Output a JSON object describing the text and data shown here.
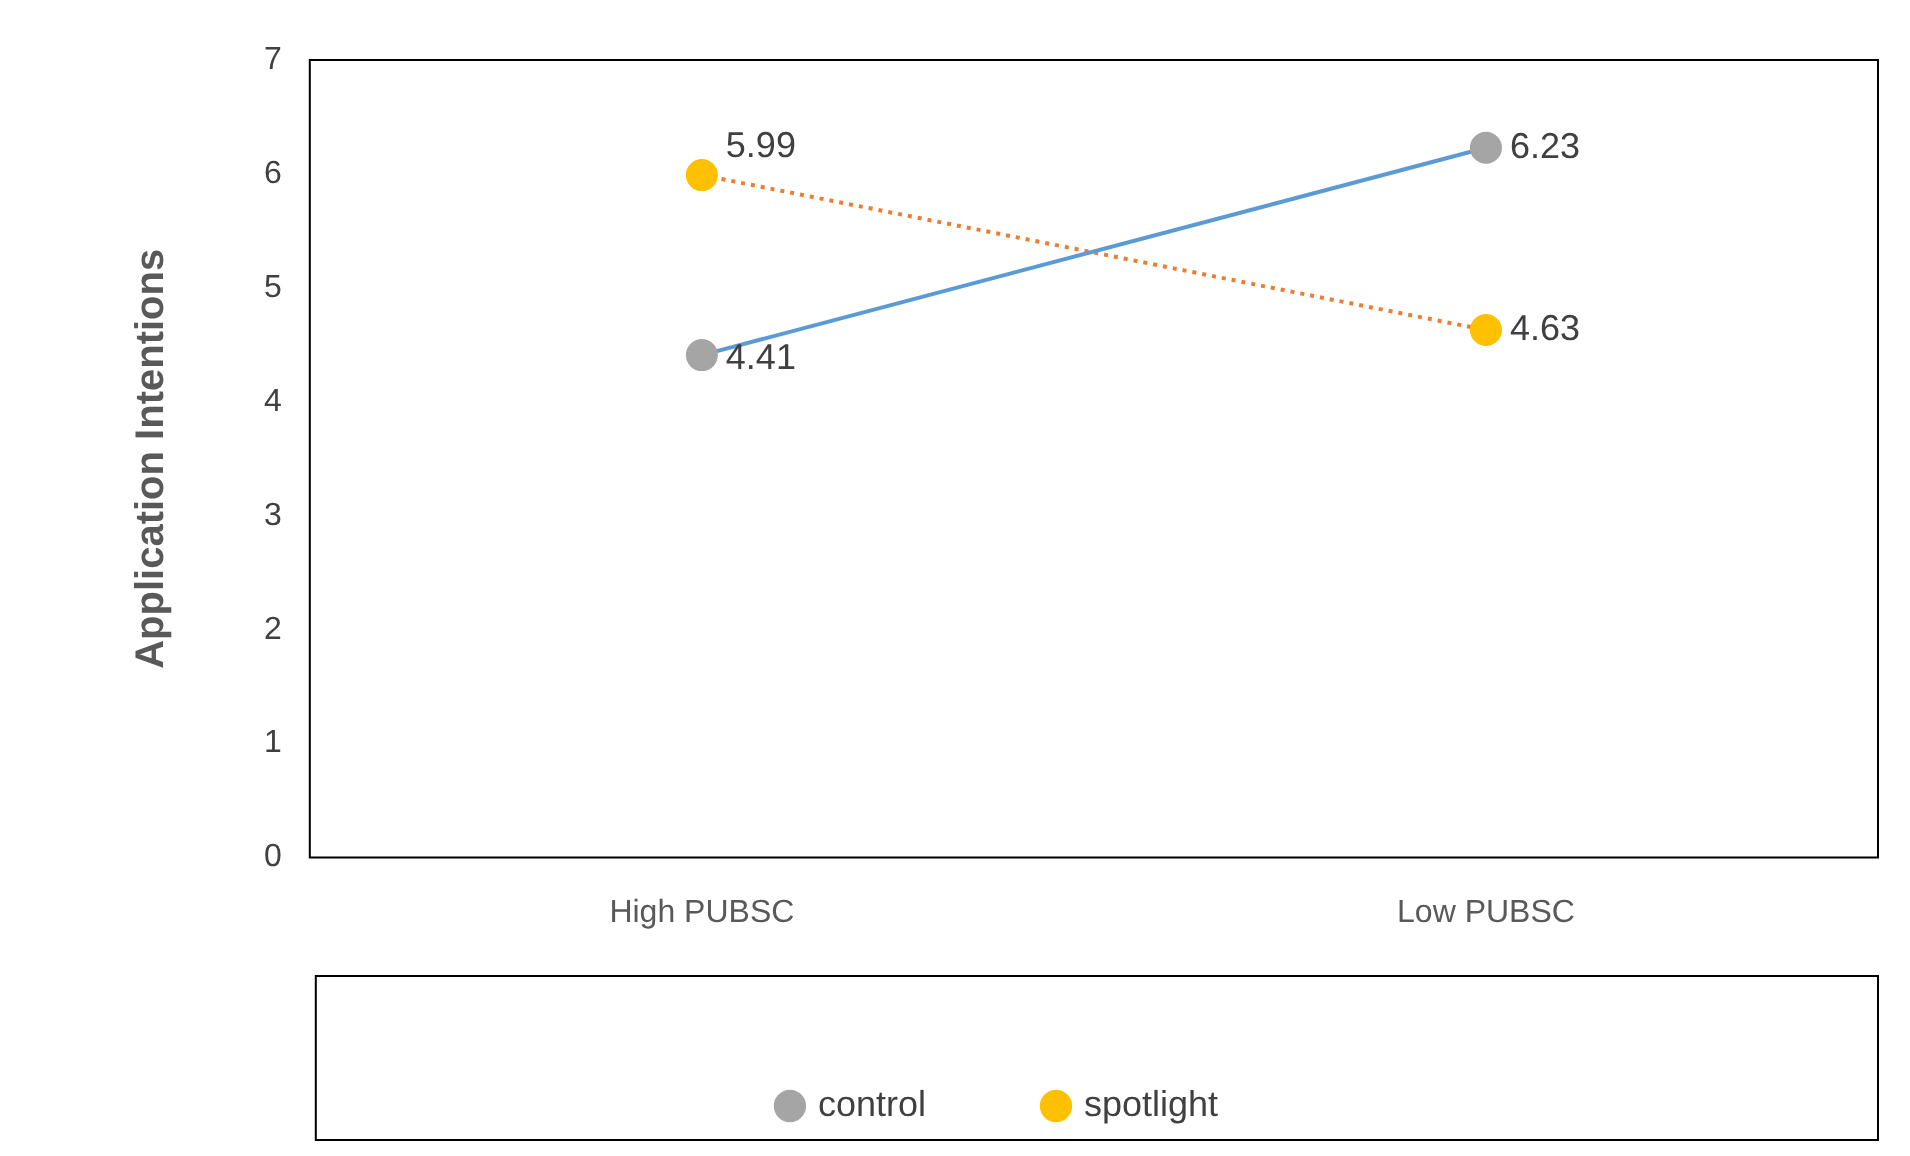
{
  "chart_data": {
    "type": "line",
    "ylabel": "Application Intentions",
    "categories": [
      "High PUBSC",
      "Low PUBSC"
    ],
    "series": [
      {
        "name": "control",
        "color": "#5b9bd5",
        "colors": [
          "#a5a5a5",
          "#a5a5a5"
        ],
        "line_style": "solid",
        "values": [
          4.41,
          6.23
        ]
      },
      {
        "name": "spotlight",
        "color": "#ed7d31",
        "colors": [
          "#ffc000",
          "#ffc000"
        ],
        "line_style": "dotted",
        "values": [
          5.99,
          4.63
        ]
      }
    ],
    "ylim": [
      0,
      7
    ],
    "yticks": [
      0,
      1,
      2,
      3,
      4,
      5,
      6,
      7
    ],
    "grid": false,
    "legend": "bottom",
    "marker": "circle",
    "data_labels": true
  }
}
